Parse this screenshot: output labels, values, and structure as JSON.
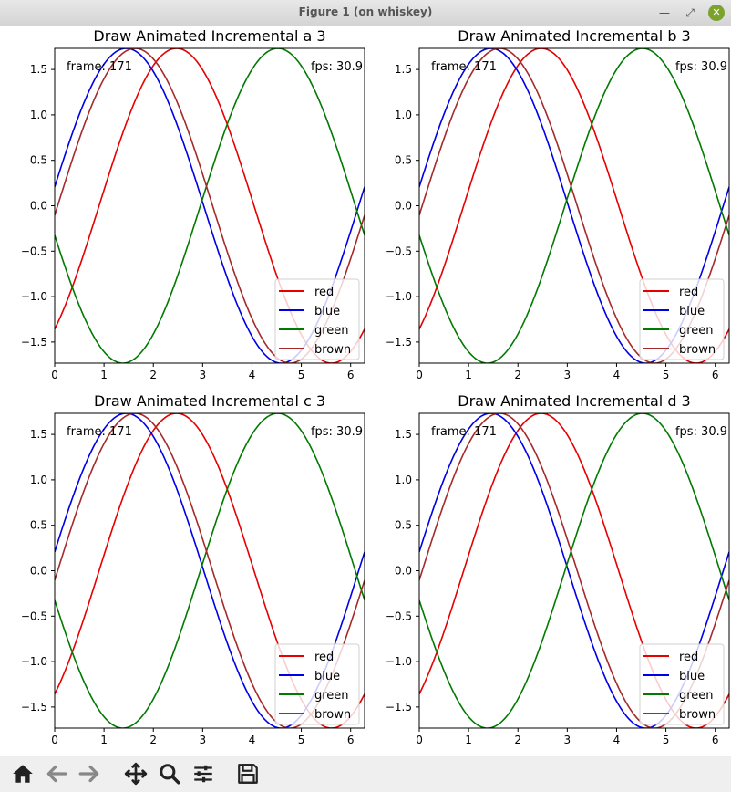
{
  "window": {
    "title": "Figure 1 (on whiskey)"
  },
  "toolbar": {
    "buttons": [
      "home-button",
      "back-button",
      "forward-button",
      "pan-button",
      "zoom-button",
      "configure-subplots-button",
      "save-button"
    ]
  },
  "colors": {
    "red": "#e60000",
    "blue": "#0000e6",
    "green": "#007a00",
    "brown": "#a52a2a",
    "toolbar_bg": "#efefef",
    "toolbar_icon": "#222222",
    "toolbar_icon_disabled": "#888888"
  },
  "chart_data": [
    {
      "type": "line",
      "title": "Draw Animated Incremental a 3",
      "frame_text": "frame: 171",
      "fps_text": "fps: 30.9",
      "xlim": [
        0,
        6.283
      ],
      "ylim": [
        -1.732,
        1.732
      ],
      "xticks": [
        0,
        1,
        2,
        3,
        4,
        5,
        6
      ],
      "xtick_labels": [
        "0",
        "1",
        "2",
        "3",
        "4",
        "5",
        "6"
      ],
      "yticks": [
        1.5,
        1.0,
        0.5,
        0.0,
        -0.5,
        -1.0,
        -1.5
      ],
      "ytick_labels": [
        "1.5",
        "1.0",
        "0.5",
        "0.0",
        "−0.5",
        "−1.0",
        "−1.5"
      ],
      "legend_location": "lower right",
      "series": [
        {
          "name": "red",
          "color": "red",
          "amplitude": 1.732,
          "phase": -0.9
        },
        {
          "name": "blue",
          "color": "blue",
          "amplitude": 1.732,
          "phase": 0.12
        },
        {
          "name": "green",
          "color": "green",
          "amplitude": 1.732,
          "phase": 3.33
        },
        {
          "name": "brown",
          "color": "brown",
          "amplitude": 1.732,
          "phase": -0.06
        }
      ]
    },
    {
      "type": "line",
      "title": "Draw Animated Incremental b 3",
      "frame_text": "frame: 171",
      "fps_text": "fps: 30.9",
      "xlim": [
        0,
        6.283
      ],
      "ylim": [
        -1.732,
        1.732
      ],
      "xticks": [
        0,
        1,
        2,
        3,
        4,
        5,
        6
      ],
      "xtick_labels": [
        "0",
        "1",
        "2",
        "3",
        "4",
        "5",
        "6"
      ],
      "yticks": [
        1.5,
        1.0,
        0.5,
        0.0,
        -0.5,
        -1.0,
        -1.5
      ],
      "ytick_labels": [
        "1.5",
        "1.0",
        "0.5",
        "0.0",
        "−0.5",
        "−1.0",
        "−1.5"
      ],
      "legend_location": "lower right",
      "series": [
        {
          "name": "red",
          "color": "red",
          "amplitude": 1.732,
          "phase": -0.9
        },
        {
          "name": "blue",
          "color": "blue",
          "amplitude": 1.732,
          "phase": 0.12
        },
        {
          "name": "green",
          "color": "green",
          "amplitude": 1.732,
          "phase": 3.33
        },
        {
          "name": "brown",
          "color": "brown",
          "amplitude": 1.732,
          "phase": -0.06
        }
      ]
    },
    {
      "type": "line",
      "title": "Draw Animated Incremental c 3",
      "frame_text": "frame: 171",
      "fps_text": "fps: 30.9",
      "xlim": [
        0,
        6.283
      ],
      "ylim": [
        -1.732,
        1.732
      ],
      "xticks": [
        0,
        1,
        2,
        3,
        4,
        5,
        6
      ],
      "xtick_labels": [
        "0",
        "1",
        "2",
        "3",
        "4",
        "5",
        "6"
      ],
      "yticks": [
        1.5,
        1.0,
        0.5,
        0.0,
        -0.5,
        -1.0,
        -1.5
      ],
      "ytick_labels": [
        "1.5",
        "1.0",
        "0.5",
        "0.0",
        "−0.5",
        "−1.0",
        "−1.5"
      ],
      "legend_location": "lower right",
      "series": [
        {
          "name": "red",
          "color": "red",
          "amplitude": 1.732,
          "phase": -0.9
        },
        {
          "name": "blue",
          "color": "blue",
          "amplitude": 1.732,
          "phase": 0.12
        },
        {
          "name": "green",
          "color": "green",
          "amplitude": 1.732,
          "phase": 3.33
        },
        {
          "name": "brown",
          "color": "brown",
          "amplitude": 1.732,
          "phase": -0.06
        }
      ]
    },
    {
      "type": "line",
      "title": "Draw Animated Incremental d 3",
      "frame_text": "frame: 171",
      "fps_text": "fps: 30.9",
      "xlim": [
        0,
        6.283
      ],
      "ylim": [
        -1.732,
        1.732
      ],
      "xticks": [
        0,
        1,
        2,
        3,
        4,
        5,
        6
      ],
      "xtick_labels": [
        "0",
        "1",
        "2",
        "3",
        "4",
        "5",
        "6"
      ],
      "yticks": [
        1.5,
        1.0,
        0.5,
        0.0,
        -0.5,
        -1.0,
        -1.5
      ],
      "ytick_labels": [
        "1.5",
        "1.0",
        "0.5",
        "0.0",
        "−0.5",
        "−1.0",
        "−1.5"
      ],
      "legend_location": "lower right",
      "series": [
        {
          "name": "red",
          "color": "red",
          "amplitude": 1.732,
          "phase": -0.9
        },
        {
          "name": "blue",
          "color": "blue",
          "amplitude": 1.732,
          "phase": 0.12
        },
        {
          "name": "green",
          "color": "green",
          "amplitude": 1.732,
          "phase": 3.33
        },
        {
          "name": "brown",
          "color": "brown",
          "amplitude": 1.732,
          "phase": -0.06
        }
      ]
    }
  ]
}
